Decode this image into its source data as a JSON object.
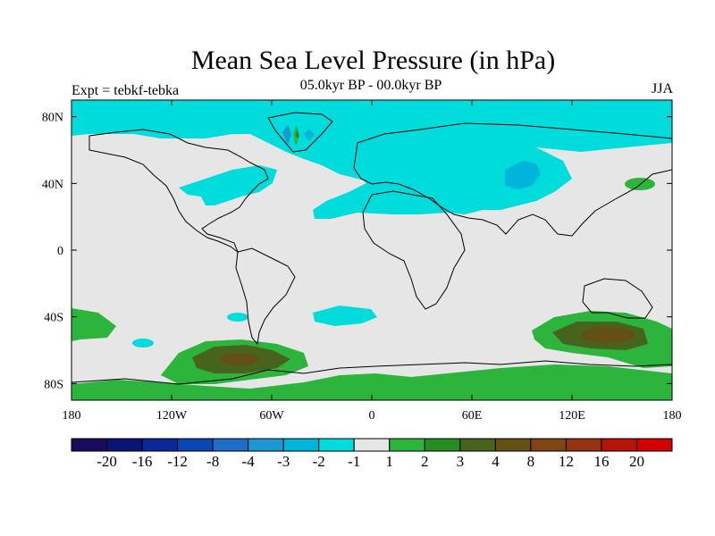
{
  "header": {
    "title": "Mean Sea Level Pressure (in hPa)",
    "subtitle": "05.0kyr BP - 00.0kyr BP",
    "left_label": "Expt = tebkf-tebka",
    "right_label": "JJA"
  },
  "map": {
    "projection": "cylindrical-equidistant",
    "lon_range": [
      -180,
      180
    ],
    "lat_range": [
      -90,
      90
    ],
    "background_color": "#e6e6e6",
    "lon_ticks": [
      {
        "value": -180,
        "label": "180"
      },
      {
        "value": -120,
        "label": "120W"
      },
      {
        "value": -60,
        "label": "60W"
      },
      {
        "value": 0,
        "label": "0"
      },
      {
        "value": 60,
        "label": "60E"
      },
      {
        "value": 120,
        "label": "120E"
      },
      {
        "value": 180,
        "label": "180"
      }
    ],
    "lat_ticks": [
      {
        "value": 80,
        "label": "80N"
      },
      {
        "value": 40,
        "label": "40N"
      },
      {
        "value": 0,
        "label": "0"
      },
      {
        "value": -40,
        "label": "40S"
      },
      {
        "value": -80,
        "label": "80S"
      }
    ]
  },
  "colorbar": {
    "colors": [
      "#1a0a5c",
      "#0a1473",
      "#0a2896",
      "#0a46b4",
      "#1e6ec8",
      "#1e96d2",
      "#00b4dc",
      "#00dcdc",
      "#e6e6e6",
      "#2db43c",
      "#288c23",
      "#46641e",
      "#645014",
      "#7d4614",
      "#963214",
      "#b4140a",
      "#d20000"
    ],
    "labels": [
      "-20",
      "-16",
      "-12",
      "-8",
      "-4",
      "-3",
      "-2",
      "-1",
      "1",
      "2",
      "3",
      "4",
      "8",
      "12",
      "16",
      "20"
    ]
  }
}
